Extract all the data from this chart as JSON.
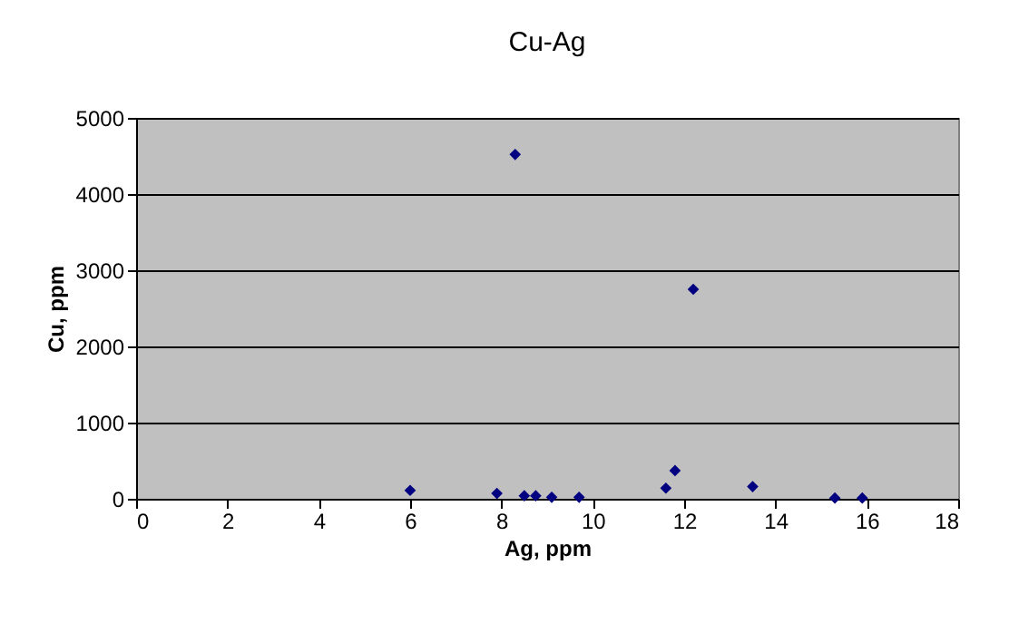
{
  "chart_data": {
    "type": "scatter",
    "title": "Cu-Ag",
    "xlabel": "Ag, ppm",
    "ylabel": "Cu, ppm",
    "x": [
      6.0,
      7.9,
      8.5,
      8.75,
      9.1,
      9.7,
      11.6,
      11.8,
      13.5,
      15.3,
      15.9,
      8.3,
      12.2
    ],
    "series": [
      {
        "color": "#000080",
        "values": [
          110,
          70,
          40,
          40,
          20,
          20,
          140,
          370,
          160,
          10,
          10,
          4520,
          2750
        ]
      }
    ],
    "xlim": [
      0,
      18
    ],
    "xticks": [
      0,
      2,
      4,
      6,
      8,
      10,
      12,
      14,
      16,
      18
    ],
    "ylim": [
      0,
      5000
    ],
    "yticks": [
      0,
      1000,
      2000,
      3000,
      4000,
      5000
    ],
    "grid": "y",
    "marker": "diamond",
    "legend": false
  }
}
